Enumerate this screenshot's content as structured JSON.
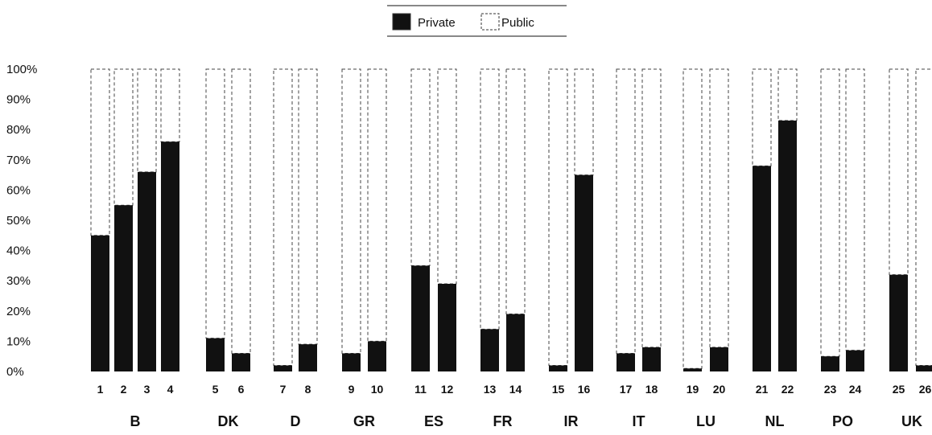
{
  "chart_data": {
    "type": "bar",
    "stacked": true,
    "percent_stacked": true,
    "legend": {
      "placement": "top-center",
      "entries": [
        {
          "name": "Private",
          "color": "#111111"
        },
        {
          "name": "Public",
          "color": "#ffffff"
        }
      ]
    },
    "y_ticks": [
      "0%",
      "10%",
      "20%",
      "30%",
      "40%",
      "50%",
      "60%",
      "70%",
      "80%",
      "90%",
      "100%"
    ],
    "ylim": [
      0,
      100
    ],
    "groups": [
      {
        "label": "B",
        "bars": [
          "1",
          "2",
          "3",
          "4"
        ]
      },
      {
        "label": "DK",
        "bars": [
          "5",
          "6"
        ]
      },
      {
        "label": "D",
        "bars": [
          "7",
          "8"
        ]
      },
      {
        "label": "GR",
        "bars": [
          "9",
          "10"
        ]
      },
      {
        "label": "ES",
        "bars": [
          "11",
          "12"
        ]
      },
      {
        "label": "FR",
        "bars": [
          "13",
          "14"
        ]
      },
      {
        "label": "IR",
        "bars": [
          "15",
          "16"
        ]
      },
      {
        "label": "IT",
        "bars": [
          "17",
          "18"
        ]
      },
      {
        "label": "LU",
        "bars": [
          "19",
          "20"
        ]
      },
      {
        "label": "NL",
        "bars": [
          "21",
          "22"
        ]
      },
      {
        "label": "PO",
        "bars": [
          "23",
          "24"
        ]
      },
      {
        "label": "UK",
        "bars": [
          "25",
          "26"
        ]
      }
    ],
    "categories": [
      "1",
      "2",
      "3",
      "4",
      "5",
      "6",
      "7",
      "8",
      "9",
      "10",
      "11",
      "12",
      "13",
      "14",
      "15",
      "16",
      "17",
      "18",
      "19",
      "20",
      "21",
      "22",
      "23",
      "24",
      "25",
      "26"
    ],
    "series": [
      {
        "name": "Private",
        "values": [
          45,
          55,
          66,
          76,
          11,
          6,
          2,
          9,
          6,
          10,
          35,
          29,
          14,
          19,
          2,
          65,
          6,
          8,
          1,
          8,
          68,
          83,
          5,
          7,
          32,
          2
        ]
      },
      {
        "name": "Public",
        "values": [
          55,
          45,
          34,
          24,
          89,
          94,
          98,
          91,
          94,
          90,
          65,
          71,
          86,
          81,
          98,
          35,
          94,
          92,
          99,
          92,
          32,
          17,
          95,
          93,
          68,
          98
        ]
      }
    ],
    "grid": false
  }
}
